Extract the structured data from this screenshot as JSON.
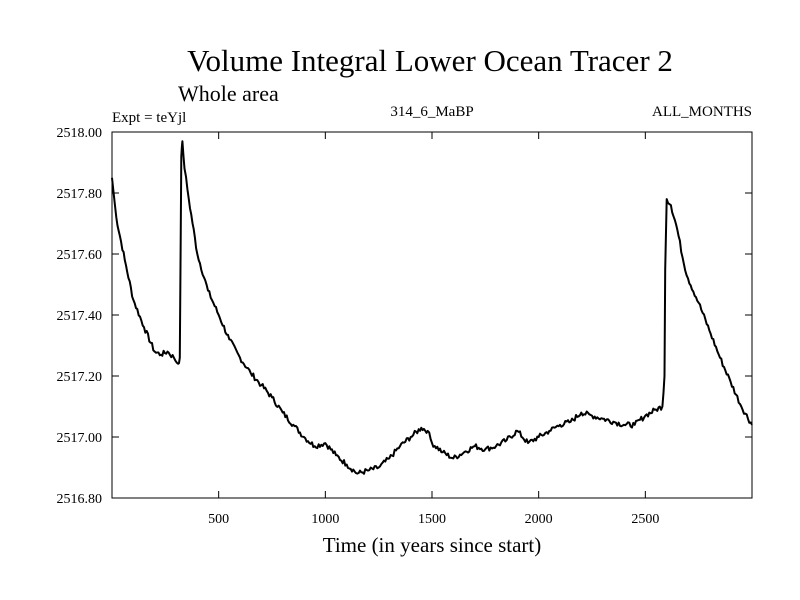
{
  "chart_data": {
    "type": "line",
    "title": "Volume Integral Lower Ocean Tracer 2",
    "subtitle": "Whole area",
    "left_label": "Expt = teYjl",
    "center_label": "314_6_MaBP",
    "right_label": "ALL_MONTHS",
    "xlabel": "Time (in years since start)",
    "ylabel": "",
    "xlim": [
      0,
      3000
    ],
    "ylim": [
      2516.8,
      2518.0
    ],
    "x_ticks": [
      500,
      1000,
      1500,
      2000,
      2500
    ],
    "x_tick_labels": [
      "500",
      "1000",
      "1500",
      "2000",
      "2500"
    ],
    "y_ticks": [
      2516.8,
      2517.0,
      2517.2,
      2517.4,
      2517.6,
      2517.8,
      2518.0
    ],
    "y_tick_labels": [
      "2516.80",
      "2517.00",
      "2517.20",
      "2517.40",
      "2517.60",
      "2517.80",
      "2518.00"
    ],
    "grid": false,
    "series": [
      {
        "name": "Lower Ocean Tracer 2",
        "color": "#000000",
        "x": [
          0,
          20,
          60,
          100,
          150,
          200,
          230,
          260,
          290,
          310,
          318,
          322,
          325,
          330,
          340,
          360,
          400,
          450,
          500,
          550,
          600,
          650,
          700,
          750,
          800,
          850,
          900,
          950,
          1000,
          1050,
          1100,
          1150,
          1200,
          1250,
          1300,
          1350,
          1400,
          1450,
          1480,
          1500,
          1550,
          1600,
          1650,
          1700,
          1750,
          1800,
          1850,
          1900,
          1950,
          2000,
          2050,
          2100,
          2150,
          2200,
          2250,
          2300,
          2350,
          2400,
          2450,
          2500,
          2550,
          2580,
          2590,
          2593,
          2600,
          2620,
          2650,
          2680,
          2700,
          2750,
          2800,
          2850,
          2900,
          2950,
          3000
        ],
        "y": [
          2517.85,
          2517.72,
          2517.58,
          2517.45,
          2517.36,
          2517.28,
          2517.27,
          2517.28,
          2517.26,
          2517.24,
          2517.26,
          2517.65,
          2517.92,
          2517.97,
          2517.88,
          2517.78,
          2517.6,
          2517.48,
          2517.4,
          2517.32,
          2517.26,
          2517.21,
          2517.17,
          2517.13,
          2517.08,
          2517.04,
          2517.0,
          2516.97,
          2516.98,
          2516.94,
          2516.91,
          2516.88,
          2516.89,
          2516.9,
          2516.93,
          2516.97,
          2517.0,
          2517.03,
          2517.02,
          2516.98,
          2516.95,
          2516.93,
          2516.95,
          2516.97,
          2516.96,
          2516.97,
          2516.99,
          2517.02,
          2516.98,
          2517.0,
          2517.02,
          2517.04,
          2517.05,
          2517.08,
          2517.07,
          2517.06,
          2517.05,
          2517.04,
          2517.04,
          2517.07,
          2517.09,
          2517.1,
          2517.2,
          2517.55,
          2517.78,
          2517.76,
          2517.68,
          2517.57,
          2517.52,
          2517.44,
          2517.35,
          2517.26,
          2517.18,
          2517.1,
          2517.04
        ]
      }
    ]
  }
}
